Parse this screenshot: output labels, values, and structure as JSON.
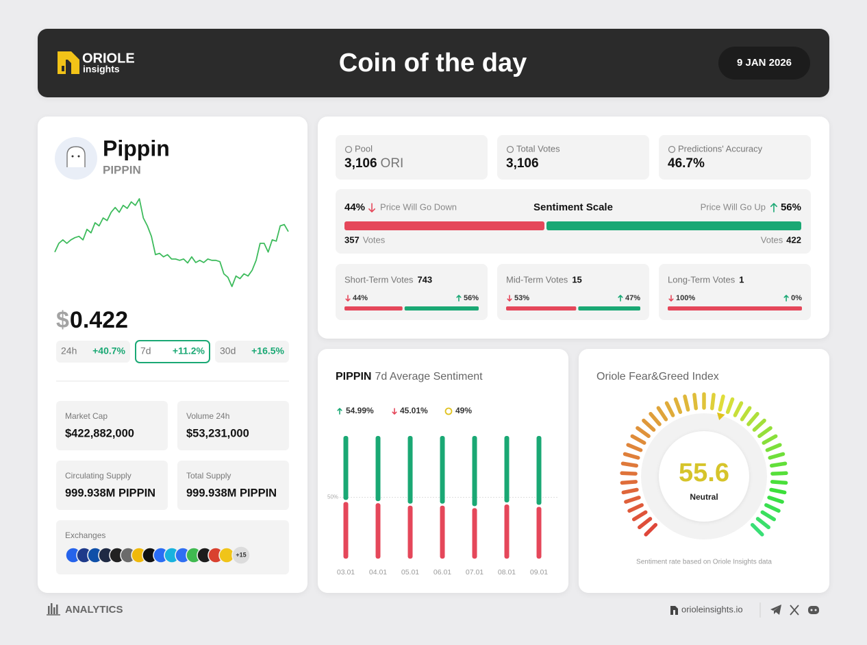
{
  "header": {
    "logo_top": "ORIOLE",
    "logo_bottom": "insights",
    "title": "Coin of the day",
    "date": "9 JAN 2026"
  },
  "coin": {
    "name": "Pippin",
    "ticker": "PIPPIN",
    "currency": "$",
    "price": "0.422",
    "changes": [
      {
        "period": "24h",
        "value": "+40.7%"
      },
      {
        "period": "7d",
        "value": "+11.2%"
      },
      {
        "period": "30d",
        "value": "+16.5%"
      }
    ],
    "stats": [
      {
        "label": "Market Cap",
        "value": "$422,882,000"
      },
      {
        "label": "Volume 24h",
        "value": "$53,231,000"
      },
      {
        "label": "Circulating Supply",
        "value": "999.938M PIPPIN"
      },
      {
        "label": "Total Supply",
        "value": "999.938M PIPPIN"
      }
    ],
    "exchanges": {
      "label": "Exchanges",
      "more": "+15"
    }
  },
  "price_chart": {
    "type": "line",
    "color": "#3dbb5c",
    "values": [
      0.375,
      0.395,
      0.403,
      0.395,
      0.403,
      0.408,
      0.411,
      0.403,
      0.427,
      0.419,
      0.442,
      0.435,
      0.453,
      0.447,
      0.466,
      0.477,
      0.466,
      0.482,
      0.475,
      0.49,
      0.482,
      0.497,
      0.453,
      0.435,
      0.411,
      0.369,
      0.372,
      0.364,
      0.369,
      0.359,
      0.359,
      0.356,
      0.359,
      0.35,
      0.364,
      0.351,
      0.356,
      0.351,
      0.359,
      0.356,
      0.356,
      0.353,
      0.325,
      0.317,
      0.296,
      0.32,
      0.314,
      0.325,
      0.32,
      0.333,
      0.356,
      0.395,
      0.395,
      0.375,
      0.403,
      0.4,
      0.435,
      0.438,
      0.422
    ]
  },
  "votes": {
    "stats": [
      {
        "label": "Pool",
        "value": "3,106",
        "unit": "ORI"
      },
      {
        "label": "Total Votes",
        "value": "3,106"
      },
      {
        "label": "Predictions' Accuracy",
        "value": "46.7%"
      }
    ],
    "scale": {
      "title": "Sentiment Scale",
      "down": {
        "value": 44,
        "label": "44%"
      },
      "down_text": "Price Will Go Down",
      "up": {
        "value": 56,
        "label": "56%"
      },
      "up_text": "Price Will Go Up",
      "down_votes": "357",
      "down_votes_word": "Votes",
      "up_votes": "422",
      "up_votes_word": "Votes"
    },
    "terms": [
      {
        "label": "Short-Term Votes",
        "count": "743",
        "down": {
          "value": 44,
          "label": "44%"
        },
        "up": {
          "value": 56,
          "label": "56%"
        }
      },
      {
        "label": "Mid-Term Votes",
        "count": "15",
        "down": {
          "value": 53,
          "label": "53%"
        },
        "up": {
          "value": 47,
          "label": "47%"
        }
      },
      {
        "label": "Long-Term Votes",
        "count": "1",
        "down": {
          "value": 100,
          "label": "100%"
        },
        "up": {
          "value": 0,
          "label": "0%"
        }
      }
    ]
  },
  "sentiment_chart": {
    "type": "stacked_bar",
    "title_ticker": "PIPPIN",
    "title": "7d Average Sentiment",
    "legend": [
      "54.99%",
      "45.01%",
      "49%"
    ],
    "categories": [
      "03.01",
      "04.01",
      "05.01",
      "06.01",
      "07.01",
      "08.01",
      "09.01"
    ],
    "series": [
      {
        "color": "#e5475a",
        "values": [
          47,
          46,
          44,
          44,
          42,
          45,
          43
        ]
      },
      {
        "color": "#1aa874",
        "values": [
          53,
          54,
          56,
          56,
          58,
          55,
          57
        ]
      }
    ],
    "ylim": [
      0,
      100
    ],
    "yticks": [
      {
        "value": 50,
        "label": "50%"
      }
    ]
  },
  "fear_greed": {
    "type": "gauge",
    "title": "Oriole Fear&Greed Index",
    "value": 55.6,
    "label": "Neutral",
    "range": [
      0,
      100
    ],
    "caption": "Sentiment rate based on Oriole Insights data"
  },
  "footer": {
    "section": "ANALYTICS",
    "site": "orioleinsights.io"
  }
}
